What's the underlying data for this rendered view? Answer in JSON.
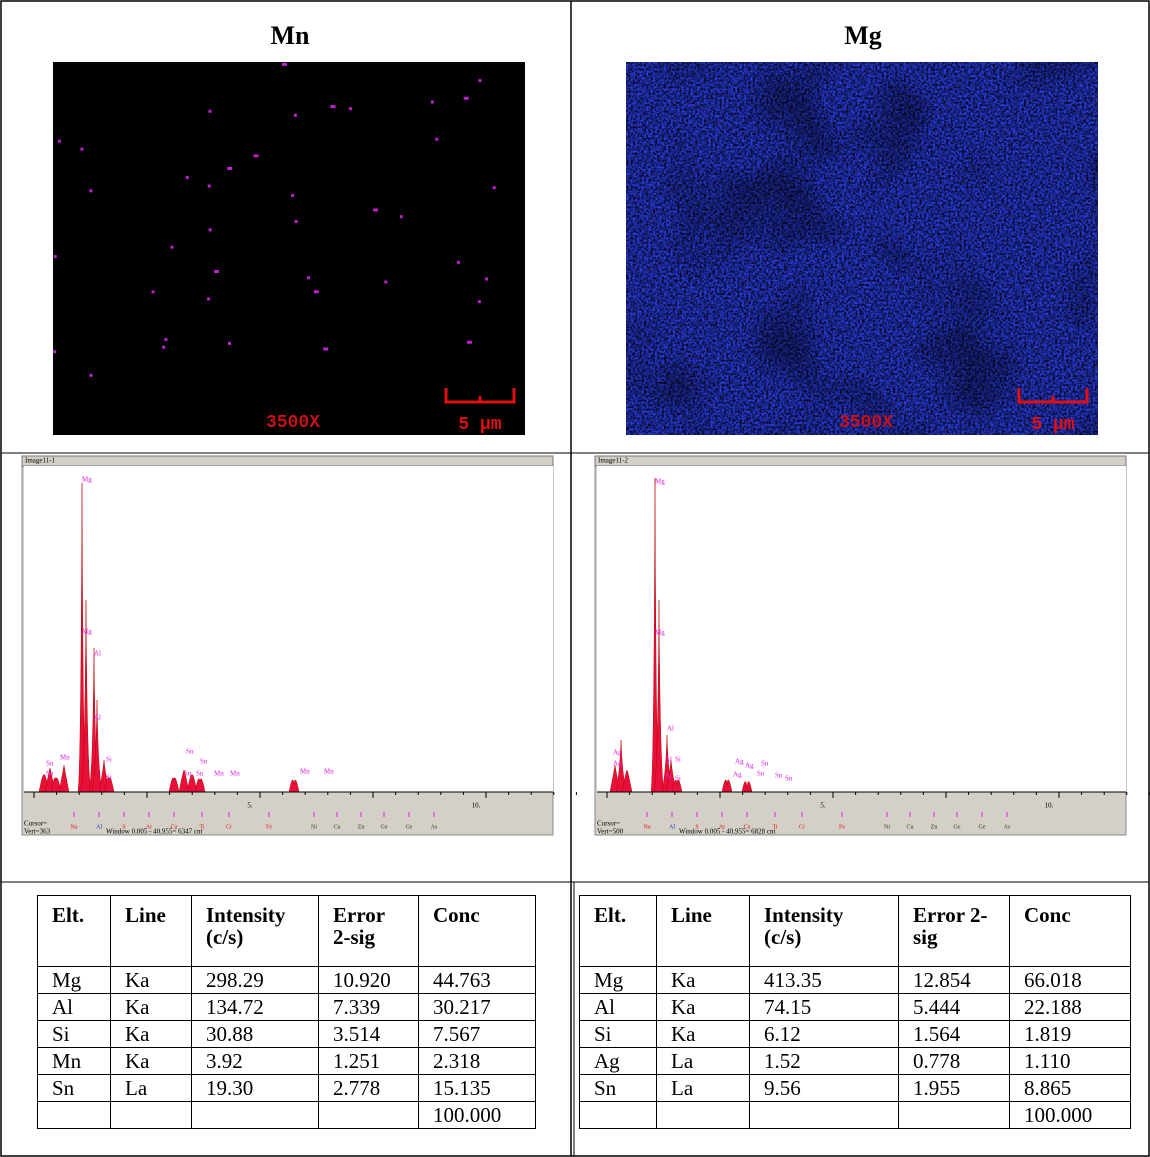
{
  "panels": [
    {
      "title": "Mn",
      "magnification": "3500X",
      "scale": "5 µm",
      "spectrum": {
        "header": "Image11-1",
        "cursor": "Cursor=",
        "vert": "Vert=363",
        "window": "Window 0.005 - 40.955=  6347 cnt",
        "axis_labels": [
          "5.",
          "10."
        ],
        "element_markers": [
          "Na",
          "Al",
          "S",
          "Ar",
          "Ca",
          "Ti",
          "Cr",
          "Fe",
          "Ni",
          "Cu",
          "Zn",
          "Ge",
          "Ge",
          "As"
        ],
        "peak_labels": [
          "Mg",
          "Mg",
          "Al",
          "Al",
          "Si",
          "Si",
          "Mn",
          "Sn",
          "Sn",
          "Sn",
          "Sn",
          "Sn",
          "Sn",
          "Mn",
          "Mn",
          "Mn",
          "Mn"
        ]
      },
      "table": {
        "header": [
          "Elt.",
          "Line",
          "Intensity (c/s)",
          "Error 2-sig",
          "Conc"
        ],
        "rows": [
          [
            "Mg",
            "Ka",
            "298.29",
            "10.920",
            "44.763"
          ],
          [
            "Al",
            "Ka",
            "134.72",
            "7.339",
            "30.217"
          ],
          [
            "Si",
            "Ka",
            "30.88",
            "3.514",
            "7.567"
          ],
          [
            "Mn",
            "Ka",
            "3.92",
            "1.251",
            "2.318"
          ],
          [
            "Sn",
            "La",
            "19.30",
            "2.778",
            "15.135"
          ]
        ],
        "total": "100.000"
      }
    },
    {
      "title": "Mg",
      "magnification": "3500X",
      "scale": "5 µm",
      "spectrum": {
        "header": "Image11-2",
        "cursor": "Cursor=",
        "vert": "Vert=500",
        "window": "Window 0.005 - 40.955=  6828 cnt",
        "axis_labels": [
          "5.",
          "10."
        ],
        "element_markers": [
          "Na",
          "Al",
          "S",
          "Ar",
          "Ca",
          "Ti",
          "Cr",
          "Fe",
          "Ni",
          "Cu",
          "Zn",
          "Ge",
          "Ge",
          "As"
        ],
        "peak_labels": [
          "Mg",
          "Mg",
          "Al",
          "Al",
          "Si",
          "Al",
          "Si",
          "Ag",
          "Ag",
          "Ag",
          "Ag",
          "Ag",
          "Sn",
          "Sn",
          "Sn",
          "Sn"
        ]
      },
      "table": {
        "header": [
          "Elt.",
          "Line",
          "Intensity (c/s)",
          "Error 2-sig",
          "Conc"
        ],
        "rows": [
          [
            "Mg",
            "Ka",
            "413.35",
            "12.854",
            "66.018"
          ],
          [
            "Al",
            "Ka",
            "74.15",
            "5.444",
            "22.188"
          ],
          [
            "Si",
            "Ka",
            "6.12",
            "1.564",
            "1.819"
          ],
          [
            "Ag",
            "La",
            "1.52",
            "0.778",
            "1.110"
          ],
          [
            "Sn",
            "La",
            "9.56",
            "1.955",
            "8.865"
          ]
        ],
        "total": "100.000"
      }
    }
  ]
}
